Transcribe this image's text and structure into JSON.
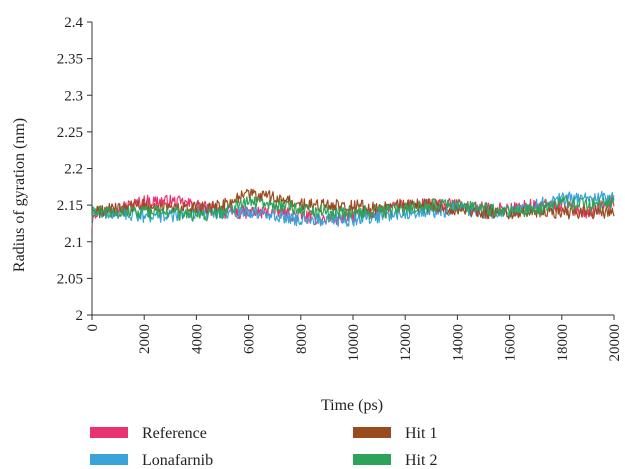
{
  "chart_data": {
    "type": "line",
    "title": "",
    "xlabel": "Time (ps)",
    "ylabel": "Radius of gyration (nm)",
    "xlim": [
      0,
      20000
    ],
    "ylim": [
      2.0,
      2.4
    ],
    "x_ticks": [
      0,
      2000,
      4000,
      6000,
      8000,
      10000,
      12000,
      14000,
      16000,
      18000,
      20000
    ],
    "y_ticks": [
      2,
      2.05,
      2.1,
      2.15,
      2.2,
      2.25,
      2.3,
      2.35,
      2.4
    ],
    "y_tick_labels": [
      "2",
      "2.05",
      "2.1",
      "2.15",
      "2.2",
      "2.25",
      "2.3",
      "2.35",
      "2.4"
    ],
    "grid": false,
    "legend_position": "bottom",
    "series": [
      {
        "name": "Reference",
        "color": "#e8336f",
        "x": [
          0,
          1000,
          2000,
          3000,
          4000,
          5000,
          6000,
          7000,
          8000,
          9000,
          10000,
          11000,
          12000,
          13000,
          14000,
          15000,
          16000,
          17000,
          18000,
          19000,
          20000
        ],
        "y": [
          2.14,
          2.145,
          2.155,
          2.155,
          2.15,
          2.14,
          2.14,
          2.14,
          2.135,
          2.13,
          2.135,
          2.14,
          2.15,
          2.15,
          2.15,
          2.145,
          2.145,
          2.15,
          2.15,
          2.14,
          2.155
        ]
      },
      {
        "name": "Lonafarnib",
        "color": "#3aa3d9",
        "x": [
          0,
          1000,
          2000,
          3000,
          4000,
          5000,
          6000,
          7000,
          8000,
          9000,
          10000,
          11000,
          12000,
          13000,
          14000,
          15000,
          16000,
          17000,
          18000,
          19000,
          20000
        ],
        "y": [
          2.14,
          2.14,
          2.135,
          2.135,
          2.14,
          2.14,
          2.14,
          2.135,
          2.13,
          2.13,
          2.13,
          2.135,
          2.14,
          2.14,
          2.145,
          2.14,
          2.14,
          2.15,
          2.16,
          2.16,
          2.16
        ]
      },
      {
        "name": "Hit 1",
        "color": "#9a4b1e",
        "x": [
          0,
          1000,
          2000,
          3000,
          4000,
          5000,
          6000,
          7000,
          8000,
          9000,
          10000,
          11000,
          12000,
          13000,
          14000,
          15000,
          16000,
          17000,
          18000,
          19000,
          20000
        ],
        "y": [
          2.14,
          2.145,
          2.15,
          2.145,
          2.145,
          2.15,
          2.165,
          2.16,
          2.15,
          2.15,
          2.15,
          2.145,
          2.15,
          2.15,
          2.145,
          2.14,
          2.14,
          2.14,
          2.14,
          2.14,
          2.14
        ]
      },
      {
        "name": "Hit 2",
        "color": "#2da35a",
        "x": [
          0,
          1000,
          2000,
          3000,
          4000,
          5000,
          6000,
          7000,
          8000,
          9000,
          10000,
          11000,
          12000,
          13000,
          14000,
          15000,
          16000,
          17000,
          18000,
          19000,
          20000
        ],
        "y": [
          2.14,
          2.14,
          2.14,
          2.14,
          2.135,
          2.14,
          2.155,
          2.15,
          2.145,
          2.14,
          2.14,
          2.14,
          2.145,
          2.15,
          2.15,
          2.145,
          2.14,
          2.145,
          2.155,
          2.15,
          2.155
        ]
      }
    ]
  }
}
